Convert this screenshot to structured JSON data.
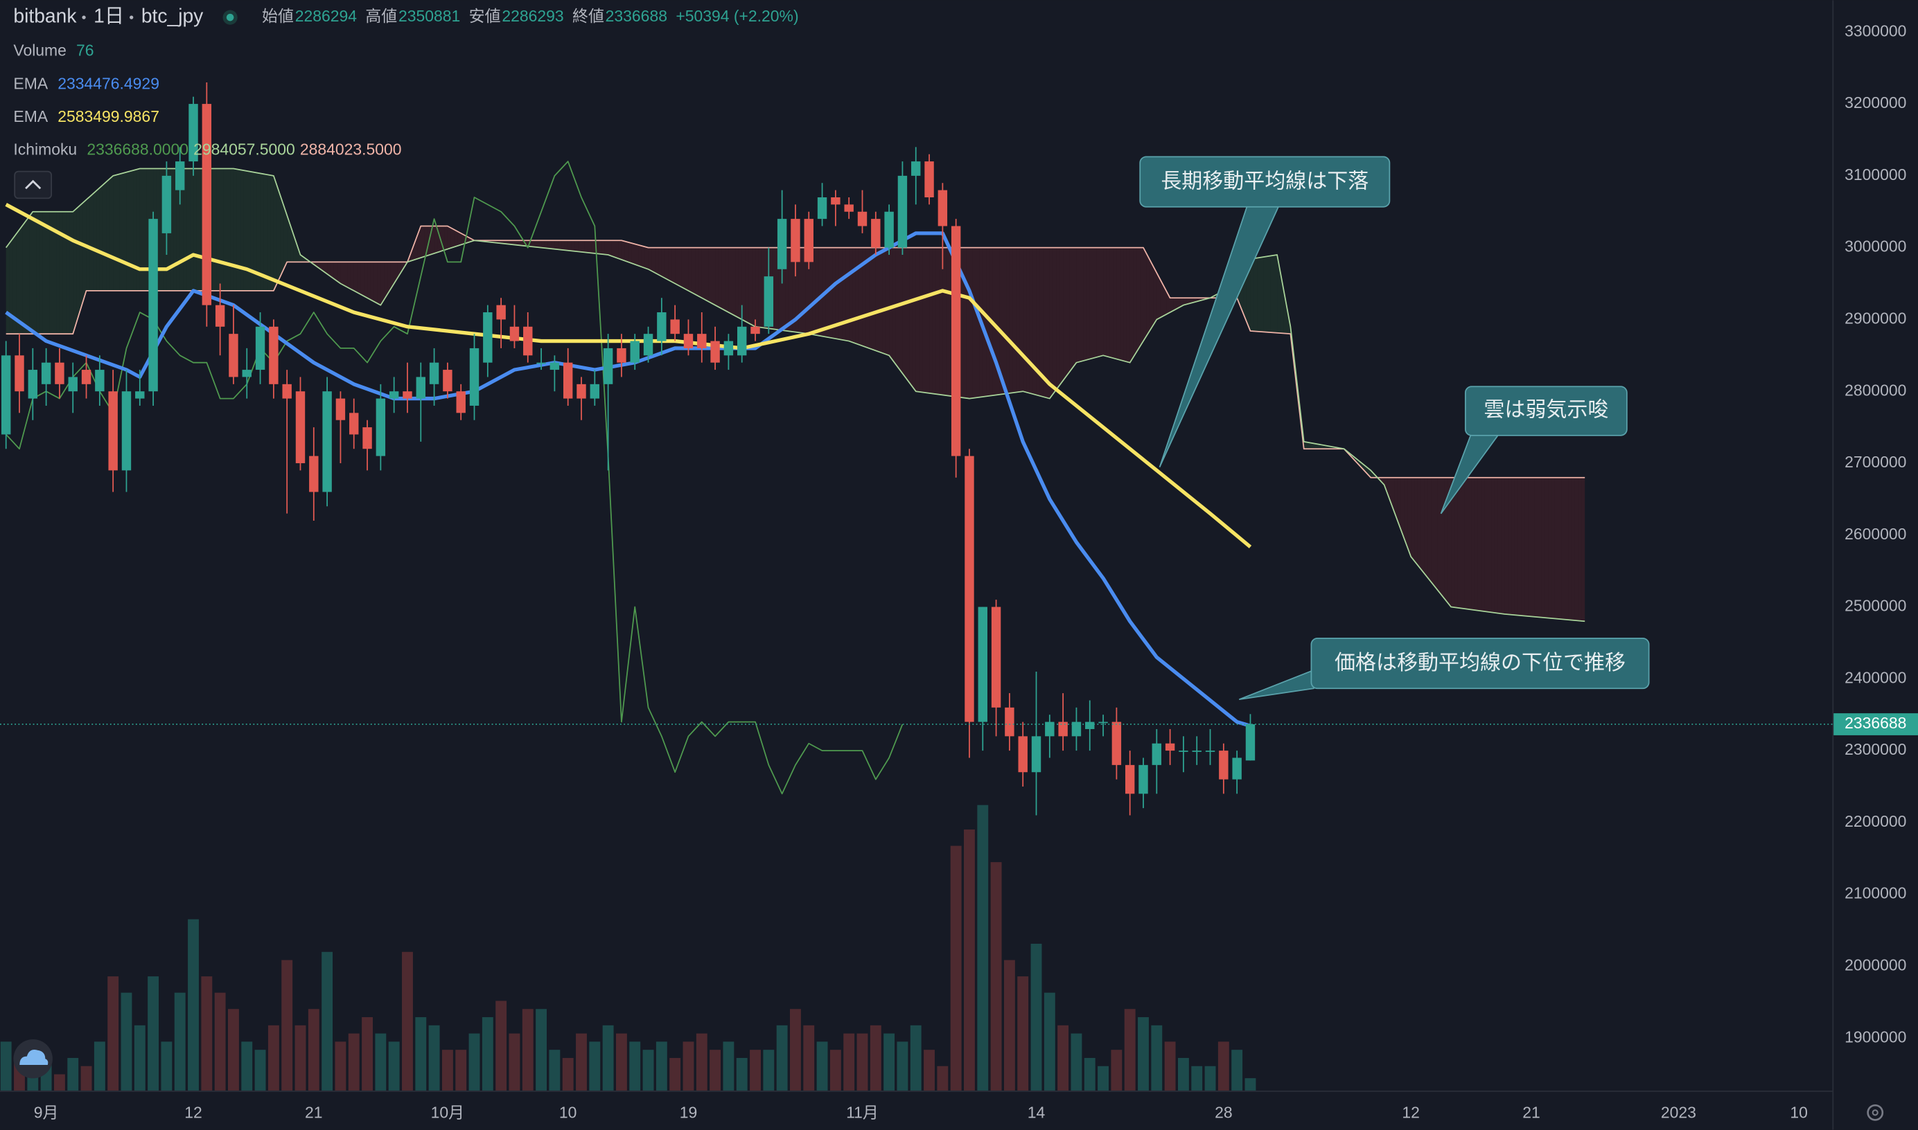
{
  "chart_data": {
    "type": "candlestick",
    "header": {
      "exchange": "bitbank",
      "interval": "1日",
      "symbol": "btc_jpy",
      "ohlc": [
        {
          "label": "始値",
          "value": 2286294
        },
        {
          "label": "高値",
          "value": 2350881
        },
        {
          "label": "安値",
          "value": 2286293
        },
        {
          "label": "終値",
          "value": 2336688
        }
      ],
      "change": "+50394 (+2.20%)"
    },
    "up_color": "#2ea392",
    "down_color": "#e35a52",
    "xlim": [
      -0.45,
      136.5
    ],
    "ylim": [
      1826900,
      3344200
    ],
    "yticks": [
      1900000,
      2000000,
      2100000,
      2200000,
      2300000,
      2400000,
      2500000,
      2600000,
      2700000,
      2800000,
      2900000,
      3000000,
      3100000,
      3200000,
      3300000
    ],
    "grid": false,
    "xticks": [
      {
        "value": 3,
        "label": "9月"
      },
      {
        "value": 14,
        "label": "12"
      },
      {
        "value": 23,
        "label": "21"
      },
      {
        "value": 33,
        "label": "10月"
      },
      {
        "value": 42,
        "label": "10"
      },
      {
        "value": 51,
        "label": "19"
      },
      {
        "value": 64,
        "label": "11月"
      },
      {
        "value": 77,
        "label": "14"
      },
      {
        "value": 91,
        "label": "28"
      },
      {
        "value": 105,
        "label": "12"
      },
      {
        "value": 114,
        "label": "21"
      },
      {
        "value": 125,
        "label": "2023"
      },
      {
        "value": 134,
        "label": "10"
      }
    ],
    "last_price": 2336688,
    "candles": {
      "open": [
        2740000,
        2850000,
        2790000,
        2810000,
        2840000,
        2800000,
        2830000,
        2800000,
        2800000,
        2690000,
        2790000,
        2800000,
        3020000,
        3080000,
        3120000,
        3200000,
        2920000,
        2880000,
        2820000,
        2830000,
        2890000,
        2810000,
        2800000,
        2710000,
        2660000,
        2790000,
        2770000,
        2750000,
        2710000,
        2790000,
        2800000,
        2790000,
        2810000,
        2830000,
        2800000,
        2780000,
        2840000,
        2920000,
        2890000,
        2890000,
        2840000,
        2830000,
        2840000,
        2810000,
        2790000,
        2810000,
        2860000,
        2840000,
        2850000,
        2870000,
        2900000,
        2880000,
        2880000,
        2870000,
        2850000,
        2850000,
        2890000,
        2890000,
        2970000,
        3040000,
        3040000,
        3040000,
        3070000,
        3060000,
        3050000,
        3040000,
        3000000,
        3000000,
        3100000,
        3120000,
        3080000,
        3030000,
        2710000,
        2340000,
        2500000,
        2360000,
        2320000,
        2270000,
        2320000,
        2340000,
        2320000,
        2330000,
        2340000,
        2340000,
        2280000,
        2240000,
        2280000,
        2310000,
        2300000,
        2300000,
        2300000,
        2300000,
        2260000,
        2286294
      ],
      "high": [
        2870000,
        2880000,
        2860000,
        2860000,
        2860000,
        2840000,
        2850000,
        2850000,
        2830000,
        2830000,
        2830000,
        3050000,
        3120000,
        3140000,
        3210000,
        3230000,
        2950000,
        2920000,
        2860000,
        2910000,
        2900000,
        2830000,
        2820000,
        2750000,
        2820000,
        2800000,
        2790000,
        2760000,
        2810000,
        2820000,
        2840000,
        2840000,
        2860000,
        2840000,
        2810000,
        2880000,
        2920000,
        2930000,
        2920000,
        2910000,
        2860000,
        2850000,
        2860000,
        2820000,
        2830000,
        2880000,
        2880000,
        2880000,
        2890000,
        2930000,
        2920000,
        2900000,
        2910000,
        2890000,
        2880000,
        2920000,
        2900000,
        3000000,
        3080000,
        3060000,
        3050000,
        3090000,
        3080000,
        3070000,
        3080000,
        3050000,
        3060000,
        3120000,
        3140000,
        3130000,
        3090000,
        3040000,
        2720000,
        2500000,
        2510000,
        2380000,
        2340000,
        2410000,
        2350000,
        2380000,
        2360000,
        2370000,
        2350000,
        2360000,
        2300000,
        2290000,
        2330000,
        2330000,
        2320000,
        2320000,
        2330000,
        2310000,
        2300000,
        2350881
      ],
      "low": [
        2720000,
        2770000,
        2760000,
        2780000,
        2790000,
        2770000,
        2790000,
        2780000,
        2660000,
        2660000,
        2780000,
        2780000,
        2990000,
        3060000,
        3100000,
        2890000,
        2850000,
        2810000,
        2790000,
        2810000,
        2790000,
        2630000,
        2690000,
        2620000,
        2640000,
        2700000,
        2720000,
        2690000,
        2690000,
        2770000,
        2770000,
        2730000,
        2780000,
        2790000,
        2760000,
        2760000,
        2820000,
        2860000,
        2860000,
        2840000,
        2830000,
        2800000,
        2780000,
        2760000,
        2780000,
        2690000,
        2820000,
        2830000,
        2840000,
        2850000,
        2870000,
        2850000,
        2840000,
        2830000,
        2830000,
        2840000,
        2870000,
        2880000,
        2950000,
        2960000,
        2970000,
        3030000,
        3030000,
        3040000,
        3020000,
        2990000,
        2990000,
        2990000,
        3060000,
        3060000,
        2970000,
        2680000,
        2290000,
        2300000,
        2320000,
        2300000,
        2250000,
        2210000,
        2290000,
        2300000,
        2300000,
        2300000,
        2320000,
        2260000,
        2210000,
        2220000,
        2240000,
        2280000,
        2270000,
        2280000,
        2280000,
        2240000,
        2240000,
        2286293
      ],
      "close": [
        2850000,
        2800000,
        2830000,
        2840000,
        2810000,
        2820000,
        2810000,
        2830000,
        2690000,
        2800000,
        2800000,
        3040000,
        3100000,
        3120000,
        3200000,
        2920000,
        2890000,
        2820000,
        2830000,
        2890000,
        2810000,
        2790000,
        2700000,
        2660000,
        2800000,
        2760000,
        2740000,
        2720000,
        2790000,
        2800000,
        2790000,
        2820000,
        2840000,
        2800000,
        2770000,
        2860000,
        2910000,
        2900000,
        2870000,
        2850000,
        2840000,
        2840000,
        2790000,
        2790000,
        2810000,
        2860000,
        2840000,
        2870000,
        2880000,
        2910000,
        2880000,
        2860000,
        2860000,
        2840000,
        2870000,
        2890000,
        2880000,
        2960000,
        3040000,
        2980000,
        2980000,
        3070000,
        3060000,
        3050000,
        3030000,
        3000000,
        3050000,
        3100000,
        3120000,
        3070000,
        3030000,
        2710000,
        2340000,
        2500000,
        2360000,
        2320000,
        2270000,
        2320000,
        2340000,
        2320000,
        2340000,
        2340000,
        2340000,
        2280000,
        2240000,
        2280000,
        2310000,
        2300000,
        2300000,
        2300000,
        2300000,
        2260000,
        2290000,
        2336688
      ]
    },
    "volume": {
      "name": "Volume",
      "last": 76,
      "ylim": [
        0,
        2000
      ],
      "up_color": "#1d4b4c",
      "down_color": "#4e2a30",
      "values": [
        300,
        200,
        150,
        200,
        100,
        200,
        150,
        300,
        700,
        600,
        400,
        700,
        300,
        600,
        1050,
        700,
        600,
        500,
        300,
        250,
        400,
        800,
        400,
        500,
        850,
        300,
        350,
        450,
        350,
        300,
        850,
        450,
        400,
        250,
        250,
        350,
        450,
        550,
        350,
        500,
        500,
        250,
        200,
        350,
        300,
        400,
        350,
        300,
        250,
        300,
        200,
        300,
        350,
        250,
        300,
        200,
        250,
        250,
        400,
        500,
        400,
        300,
        250,
        350,
        350,
        400,
        350,
        300,
        400,
        250,
        150,
        1500,
        1600,
        1750,
        1400,
        800,
        700,
        900,
        600,
        400,
        350,
        200,
        150,
        250,
        500,
        450,
        400,
        300,
        200,
        150,
        150,
        300,
        250,
        76
      ]
    },
    "ema": [
      {
        "name": "EMA",
        "color": "#4a8cf0",
        "last_label": "2334476.4929",
        "x": [
          0,
          3,
          6,
          9,
          10,
          12,
          14,
          17,
          20,
          23,
          26,
          29,
          32,
          35,
          38,
          41,
          44,
          47,
          50,
          53,
          56,
          59,
          62,
          65,
          68,
          70,
          72,
          74,
          76,
          78,
          80,
          82,
          84,
          86,
          88,
          90,
          92,
          93
        ],
        "values": [
          2910000,
          2870000,
          2850000,
          2830000,
          2820000,
          2890000,
          2940000,
          2920000,
          2880000,
          2840000,
          2810000,
          2790000,
          2790000,
          2800000,
          2830000,
          2840000,
          2830000,
          2840000,
          2860000,
          2860000,
          2860000,
          2900000,
          2950000,
          2990000,
          3020000,
          3020000,
          2940000,
          2840000,
          2730000,
          2650000,
          2590000,
          2540000,
          2480000,
          2430000,
          2400000,
          2370000,
          2340000,
          2334476.4929
        ]
      },
      {
        "name": "EMA",
        "color": "#f7e464",
        "last_label": "2583499.9867",
        "x": [
          0,
          5,
          10,
          12,
          14,
          18,
          22,
          26,
          30,
          35,
          40,
          45,
          50,
          55,
          60,
          65,
          70,
          72,
          75,
          78,
          82,
          86,
          90,
          93
        ],
        "values": [
          3060000,
          3010000,
          2970000,
          2970000,
          2990000,
          2970000,
          2940000,
          2910000,
          2890000,
          2880000,
          2870000,
          2870000,
          2870000,
          2860000,
          2880000,
          2910000,
          2940000,
          2930000,
          2870000,
          2810000,
          2750000,
          2690000,
          2630000,
          2583499.9867
        ]
      }
    ],
    "ichimoku": {
      "name": "Ichimoku",
      "lagging": {
        "color": "#4f9a4f",
        "label": "2336688.0000",
        "values": [
          2740000,
          2720000,
          2790000,
          2800000,
          2790000,
          2820000,
          2840000,
          2800000,
          2770000,
          2860000,
          2910000,
          2900000,
          2870000,
          2850000,
          2840000,
          2840000,
          2790000,
          2790000,
          2810000,
          2860000,
          2840000,
          2870000,
          2880000,
          2910000,
          2880000,
          2860000,
          2860000,
          2840000,
          2870000,
          2890000,
          2880000,
          2960000,
          3040000,
          2980000,
          2980000,
          3070000,
          3060000,
          3050000,
          3030000,
          3000000,
          3050000,
          3100000,
          3120000,
          3070000,
          3030000,
          2710000,
          2340000,
          2500000,
          2360000,
          2320000,
          2270000,
          2320000,
          2340000,
          2320000,
          2340000,
          2340000,
          2340000,
          2280000,
          2240000,
          2280000,
          2310000,
          2300000,
          2300000,
          2300000,
          2300000,
          2260000,
          2290000,
          2336688
        ]
      },
      "span_a": {
        "color": "#a9d49a",
        "label": "2984057.5000",
        "x": [
          0,
          2,
          5,
          8,
          10,
          13,
          17,
          20,
          22,
          25,
          28,
          30,
          35,
          40,
          45,
          48,
          50,
          53,
          56,
          60,
          63,
          66,
          68,
          72,
          76,
          78,
          80,
          82,
          84,
          86,
          88,
          90,
          91,
          92,
          93,
          95,
          96,
          97,
          100,
          102,
          103,
          105,
          108,
          112,
          118
        ],
        "values": [
          3000000,
          3050000,
          3050000,
          3100000,
          3110000,
          3110000,
          3110000,
          3100000,
          2990000,
          2950000,
          2920000,
          2980000,
          3010000,
          3000000,
          2990000,
          2970000,
          2950000,
          2920000,
          2890000,
          2880000,
          2870000,
          2850000,
          2800000,
          2790000,
          2800000,
          2790000,
          2840000,
          2850000,
          2840000,
          2900000,
          2920000,
          2930000,
          2940000,
          2960000,
          2984057.5,
          2990000,
          2890000,
          2730000,
          2720000,
          2690000,
          2670000,
          2570000,
          2500000,
          2490000,
          2480000
        ]
      },
      "span_b": {
        "color": "#f0b4a8",
        "label": "2884023.5000",
        "x": [
          0,
          5,
          6,
          20,
          21,
          30,
          31,
          33,
          35,
          46,
          48,
          85,
          87,
          92,
          93,
          96,
          97,
          100,
          102,
          118
        ],
        "values": [
          2880000,
          2880000,
          2940000,
          2940000,
          2980000,
          2980000,
          3030000,
          3030000,
          3010000,
          3010000,
          3000000,
          3000000,
          2930000,
          2930000,
          2884023.5,
          2880000,
          2720000,
          2720000,
          2680000,
          2680000
        ]
      },
      "cloud_up": "rgba(76,175,80,0.13)",
      "cloud_down": "rgba(229,57,53,0.13)"
    },
    "annotations": [
      "長期移動平均線は下落",
      "雲は弱気示唆",
      "価格は移動平均線の下位で推移"
    ]
  }
}
